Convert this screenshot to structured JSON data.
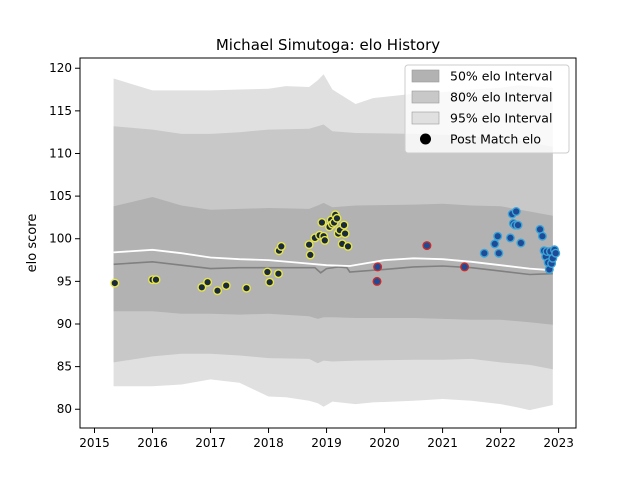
{
  "chart_data": {
    "type": "scatter",
    "title": "Michael Simutoga: elo History",
    "xlabel": "",
    "ylabel": "elo score",
    "xlim": [
      2014.75,
      2023.3
    ],
    "ylim": [
      77.8,
      121.2
    ],
    "x_ticks": [
      "2015",
      "2016",
      "2017",
      "2018",
      "2019",
      "2020",
      "2021",
      "2022",
      "2023"
    ],
    "x_tick_values": [
      2015,
      2016,
      2017,
      2018,
      2019,
      2020,
      2021,
      2022,
      2023
    ],
    "y_ticks": [
      "80",
      "85",
      "90",
      "95",
      "100",
      "105",
      "110",
      "115",
      "120"
    ],
    "y_tick_values": [
      80,
      85,
      90,
      95,
      100,
      105,
      110,
      115,
      120
    ],
    "legend_position": "top-right",
    "legend": [
      {
        "label": "50% elo Interval",
        "color": "#b2b2b2",
        "kind": "patch"
      },
      {
        "label": "80% elo Interval",
        "color": "#c8c8c8",
        "kind": "patch"
      },
      {
        "label": "95% elo Interval",
        "color": "#e0e0e0",
        "kind": "patch"
      },
      {
        "label": "Post Match elo",
        "color": "#000000",
        "kind": "dot"
      }
    ],
    "band_95": {
      "x": [
        2015.33,
        2016.0,
        2016.5,
        2017.0,
        2017.5,
        2018.0,
        2018.3,
        2018.7,
        2018.85,
        2018.95,
        2019.1,
        2019.5,
        2019.8,
        2020.5,
        2021.0,
        2021.5,
        2022.0,
        2022.3,
        2022.5,
        2022.9
      ],
      "upper": [
        118.8,
        117.4,
        117.4,
        117.4,
        117.5,
        117.6,
        117.9,
        117.8,
        118.6,
        119.3,
        117.5,
        115.8,
        116.5,
        117.0,
        117.2,
        117.5,
        117.7,
        118.0,
        117.9,
        117.7
      ],
      "lower": [
        82.7,
        82.7,
        82.9,
        83.5,
        83.1,
        81.5,
        81.4,
        81.0,
        80.7,
        80.3,
        80.9,
        80.6,
        80.8,
        81.0,
        81.2,
        81.0,
        80.6,
        80.2,
        79.9,
        80.5
      ]
    },
    "band_80": {
      "x": [
        2015.33,
        2016.0,
        2016.5,
        2017.0,
        2017.5,
        2018.0,
        2018.7,
        2018.85,
        2018.95,
        2019.1,
        2019.5,
        2020.5,
        2021.0,
        2021.5,
        2022.0,
        2022.5,
        2022.9
      ],
      "upper": [
        113.2,
        112.8,
        112.3,
        112.3,
        112.5,
        112.8,
        112.9,
        113.2,
        113.4,
        112.6,
        112.4,
        112.3,
        112.2,
        112.0,
        111.8,
        111.3,
        110.8
      ],
      "lower": [
        85.5,
        86.2,
        86.5,
        86.5,
        86.3,
        86.0,
        85.9,
        85.4,
        85.7,
        85.6,
        85.7,
        85.8,
        85.8,
        85.9,
        85.5,
        85.2,
        84.7
      ]
    },
    "band_50": {
      "x": [
        2015.33,
        2016.0,
        2016.5,
        2017.0,
        2017.5,
        2018.0,
        2018.7,
        2018.85,
        2018.95,
        2019.1,
        2019.5,
        2020.5,
        2021.0,
        2021.5,
        2022.0,
        2022.5,
        2022.9
      ],
      "upper": [
        103.8,
        104.9,
        103.9,
        103.4,
        103.5,
        103.6,
        103.5,
        103.9,
        104.2,
        103.7,
        103.9,
        104.0,
        104.1,
        103.9,
        103.8,
        103.2,
        102.7
      ],
      "lower": [
        91.5,
        91.5,
        91.2,
        91.2,
        91.1,
        91.2,
        90.9,
        90.6,
        90.8,
        90.8,
        90.7,
        90.7,
        90.6,
        90.5,
        90.5,
        90.2,
        89.9
      ]
    },
    "median_line": {
      "color": "#808080",
      "x": [
        2015.33,
        2016.0,
        2016.5,
        2017.0,
        2017.5,
        2018.0,
        2018.5,
        2018.8,
        2018.9,
        2019.0,
        2019.2,
        2019.35,
        2019.4,
        2020.0,
        2020.5,
        2021.0,
        2021.5,
        2022.0,
        2022.5,
        2022.9
      ],
      "y": [
        97.0,
        97.3,
        96.9,
        96.5,
        96.6,
        96.6,
        96.6,
        96.6,
        96.0,
        96.5,
        96.7,
        96.6,
        96.1,
        96.4,
        96.7,
        96.8,
        96.6,
        96.2,
        95.8,
        95.9
      ]
    },
    "mean_line": {
      "color": "#ffffff",
      "x": [
        2015.33,
        2016.0,
        2016.5,
        2017.0,
        2017.5,
        2018.0,
        2018.5,
        2019.0,
        2019.4,
        2020.0,
        2020.5,
        2021.0,
        2021.5,
        2022.0,
        2022.5,
        2022.9
      ],
      "y": [
        98.4,
        98.7,
        98.3,
        97.8,
        97.6,
        97.5,
        97.2,
        96.9,
        96.8,
        97.5,
        97.7,
        97.6,
        97.3,
        96.9,
        96.5,
        96.3
      ]
    },
    "series": [
      {
        "edge": "#e6e64a",
        "fill": "#1b2a3a",
        "x": [
          2015.35,
          2016.0,
          2016.06,
          2016.85,
          2016.95,
          2017.12,
          2017.27,
          2017.62,
          2017.98,
          2018.02,
          2018.17,
          2018.18,
          2018.22,
          2018.7,
          2018.72,
          2018.8,
          2018.88,
          2018.92,
          2018.95,
          2018.97,
          2019.05,
          2019.08,
          2019.1,
          2019.13,
          2019.15,
          2019.18,
          2019.2,
          2019.23,
          2019.27,
          2019.3,
          2019.32,
          2019.37
        ],
        "y": [
          94.8,
          95.2,
          95.2,
          94.3,
          94.9,
          93.9,
          94.5,
          94.2,
          96.1,
          94.9,
          95.9,
          98.6,
          99.1,
          99.3,
          98.1,
          100.1,
          100.4,
          101.9,
          100.3,
          99.8,
          101.4,
          102.2,
          101.7,
          101.9,
          102.8,
          102.4,
          100.6,
          101.0,
          99.4,
          101.6,
          100.6,
          99.1
        ]
      },
      {
        "edge": "#cc2a2a",
        "fill": "#1f4a96",
        "x": [
          2019.87,
          2019.88,
          2020.73,
          2021.38
        ],
        "y": [
          95.0,
          96.7,
          99.2,
          96.7
        ]
      },
      {
        "edge": "#3aa5d8",
        "fill": "#1f4a96",
        "x": [
          2021.72,
          2021.9,
          2021.95,
          2021.97,
          2022.17,
          2022.2,
          2022.22,
          2022.25,
          2022.27,
          2022.3,
          2022.35,
          2022.68,
          2022.72,
          2022.75,
          2022.78,
          2022.8,
          2022.82,
          2022.84,
          2022.86,
          2022.88,
          2022.9,
          2022.93,
          2022.95
        ],
        "y": [
          98.3,
          99.4,
          100.3,
          98.3,
          100.1,
          102.9,
          101.8,
          101.6,
          103.2,
          101.6,
          99.5,
          101.1,
          100.3,
          98.6,
          97.9,
          98.5,
          97.2,
          96.4,
          98.5,
          97.1,
          97.7,
          98.7,
          98.3
        ]
      }
    ]
  }
}
